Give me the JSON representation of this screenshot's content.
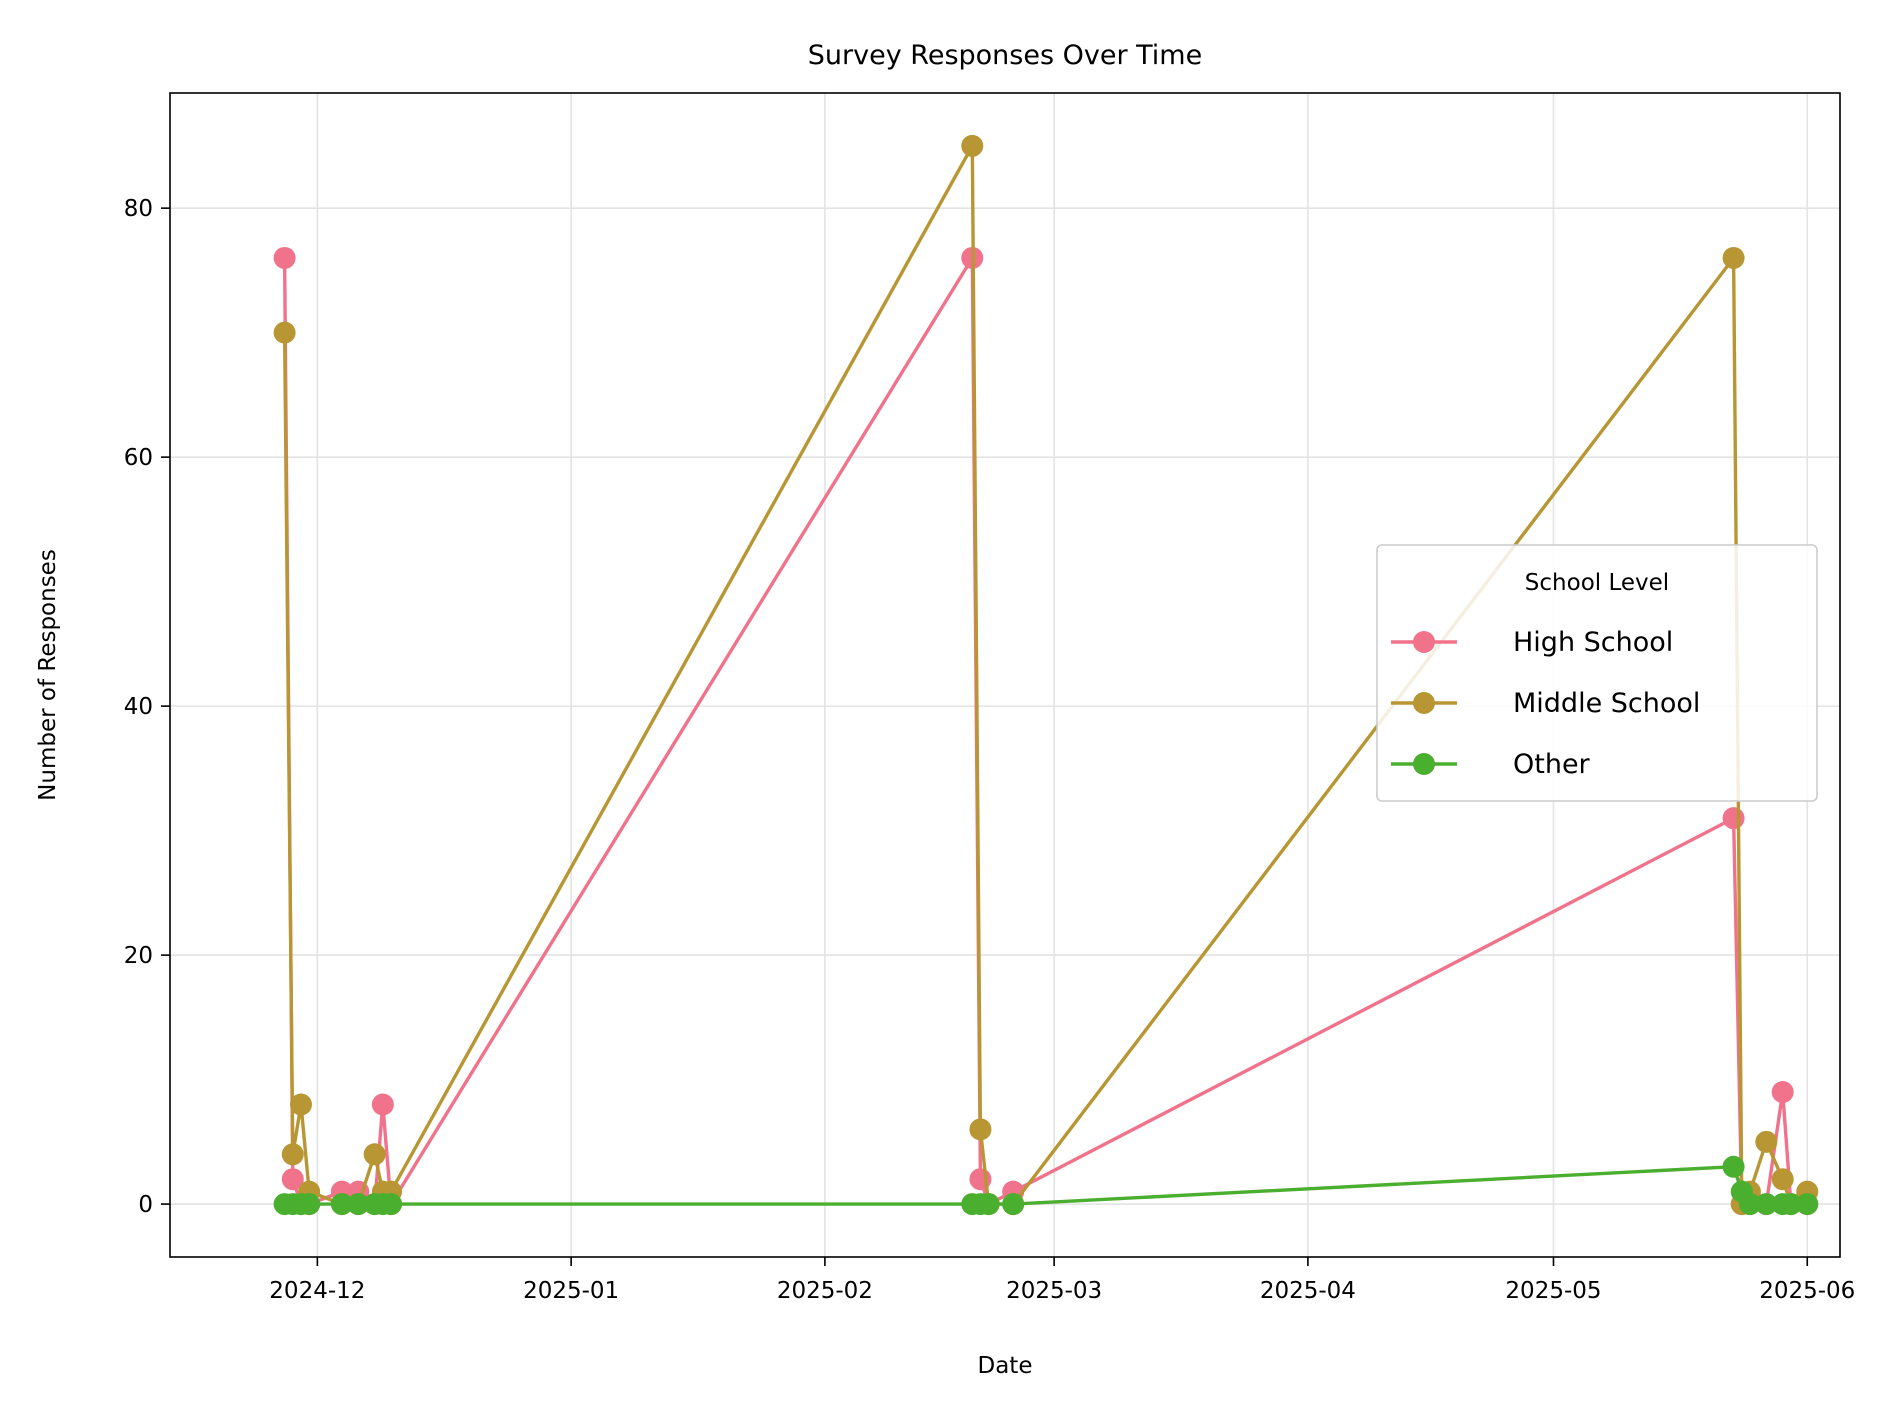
{
  "chart_data": {
    "type": "line",
    "title": "Survey Responses Over Time",
    "xlabel": "Date",
    "ylabel": "Number of Responses",
    "x_axis_type": "date",
    "xlim": [
      "2024-11-13",
      "2025-06-05"
    ],
    "ylim": [
      -4.25,
      89.25
    ],
    "x_ticks": [
      "2024-12-01",
      "2025-01-01",
      "2025-02-01",
      "2025-03-01",
      "2025-04-01",
      "2025-05-01",
      "2025-06-01"
    ],
    "x_tick_labels": [
      "2024-12",
      "2025-01",
      "2025-02",
      "2025-03",
      "2025-04",
      "2025-05",
      "2025-06"
    ],
    "y_ticks": [
      0,
      20,
      40,
      60,
      80
    ],
    "grid": true,
    "legend": {
      "title": "School Level",
      "placement": "center-right"
    },
    "series": [
      {
        "name": "High School",
        "color": "#f1728b",
        "points": [
          [
            "2024-11-27",
            76
          ],
          [
            "2024-11-28",
            2
          ],
          [
            "2024-11-29",
            0
          ],
          [
            "2024-11-30",
            0
          ],
          [
            "2024-12-04",
            1
          ],
          [
            "2024-12-06",
            1
          ],
          [
            "2024-12-08",
            0
          ],
          [
            "2024-12-09",
            8
          ],
          [
            "2024-12-10",
            0
          ],
          [
            "2025-02-19",
            76
          ],
          [
            "2025-02-20",
            2
          ],
          [
            "2025-02-21",
            0
          ],
          [
            "2025-02-24",
            1
          ],
          [
            "2025-05-23",
            31
          ],
          [
            "2025-05-24",
            0
          ],
          [
            "2025-05-25",
            0
          ],
          [
            "2025-05-27",
            0
          ],
          [
            "2025-05-29",
            9
          ],
          [
            "2025-05-30",
            0
          ],
          [
            "2025-06-01",
            0
          ]
        ]
      },
      {
        "name": "Middle School",
        "color": "#b79633",
        "points": [
          [
            "2024-11-27",
            70
          ],
          [
            "2024-11-28",
            4
          ],
          [
            "2024-11-29",
            8
          ],
          [
            "2024-11-30",
            1
          ],
          [
            "2024-12-04",
            0
          ],
          [
            "2024-12-06",
            0
          ],
          [
            "2024-12-08",
            4
          ],
          [
            "2024-12-09",
            1
          ],
          [
            "2024-12-10",
            1
          ],
          [
            "2025-02-19",
            85
          ],
          [
            "2025-02-20",
            6
          ],
          [
            "2025-02-21",
            0
          ],
          [
            "2025-02-24",
            0
          ],
          [
            "2025-05-23",
            76
          ],
          [
            "2025-05-24",
            0
          ],
          [
            "2025-05-25",
            1
          ],
          [
            "2025-05-27",
            5
          ],
          [
            "2025-05-29",
            2
          ],
          [
            "2025-05-30",
            0
          ],
          [
            "2025-06-01",
            1
          ]
        ]
      },
      {
        "name": "Other",
        "color": "#4aae2f",
        "points": [
          [
            "2024-11-27",
            0
          ],
          [
            "2024-11-28",
            0
          ],
          [
            "2024-11-29",
            0
          ],
          [
            "2024-11-30",
            0
          ],
          [
            "2024-12-04",
            0
          ],
          [
            "2024-12-06",
            0
          ],
          [
            "2024-12-08",
            0
          ],
          [
            "2024-12-09",
            0
          ],
          [
            "2024-12-10",
            0
          ],
          [
            "2025-02-19",
            0
          ],
          [
            "2025-02-20",
            0
          ],
          [
            "2025-02-21",
            0
          ],
          [
            "2025-02-24",
            0
          ],
          [
            "2025-05-23",
            3
          ],
          [
            "2025-05-24",
            1
          ],
          [
            "2025-05-25",
            0
          ],
          [
            "2025-05-27",
            0
          ],
          [
            "2025-05-29",
            0
          ],
          [
            "2025-05-30",
            0
          ],
          [
            "2025-06-01",
            0
          ]
        ]
      }
    ]
  }
}
